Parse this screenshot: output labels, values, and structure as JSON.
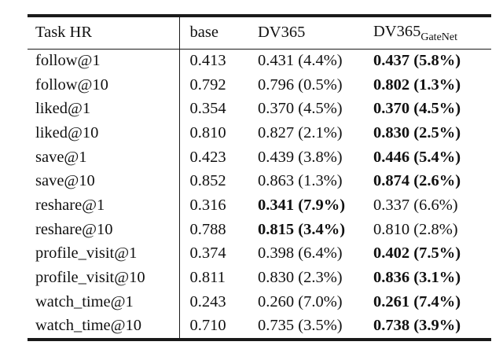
{
  "table": {
    "header": {
      "task": "Task HR",
      "base": "base",
      "dv365": "DV365",
      "gatenet_main": "DV365",
      "gatenet_sub": "GateNet"
    },
    "rows": [
      {
        "task": "follow@1",
        "base": "0.413",
        "dv365": "0.431 (4.4%)",
        "dv365_bold": false,
        "gatenet": "0.437 (5.8%)",
        "gatenet_bold": true
      },
      {
        "task": "follow@10",
        "base": "0.792",
        "dv365": "0.796 (0.5%)",
        "dv365_bold": false,
        "gatenet": "0.802 (1.3%)",
        "gatenet_bold": true
      },
      {
        "task": "liked@1",
        "base": "0.354",
        "dv365": "0.370 (4.5%)",
        "dv365_bold": false,
        "gatenet": "0.370 (4.5%)",
        "gatenet_bold": true
      },
      {
        "task": "liked@10",
        "base": "0.810",
        "dv365": "0.827 (2.1%)",
        "dv365_bold": false,
        "gatenet": "0.830 (2.5%)",
        "gatenet_bold": true
      },
      {
        "task": "save@1",
        "base": "0.423",
        "dv365": "0.439 (3.8%)",
        "dv365_bold": false,
        "gatenet": "0.446 (5.4%)",
        "gatenet_bold": true
      },
      {
        "task": "save@10",
        "base": "0.852",
        "dv365": "0.863 (1.3%)",
        "dv365_bold": false,
        "gatenet": "0.874 (2.6%)",
        "gatenet_bold": true
      },
      {
        "task": "reshare@1",
        "base": "0.316",
        "dv365": "0.341 (7.9%)",
        "dv365_bold": true,
        "gatenet": "0.337 (6.6%)",
        "gatenet_bold": false
      },
      {
        "task": "reshare@10",
        "base": "0.788",
        "dv365": "0.815 (3.4%)",
        "dv365_bold": true,
        "gatenet": "0.810 (2.8%)",
        "gatenet_bold": false
      },
      {
        "task": "profile_visit@1",
        "base": "0.374",
        "dv365": "0.398 (6.4%)",
        "dv365_bold": false,
        "gatenet": "0.402 (7.5%)",
        "gatenet_bold": true
      },
      {
        "task": "profile_visit@10",
        "base": "0.811",
        "dv365": "0.830 (2.3%)",
        "dv365_bold": false,
        "gatenet": "0.836 (3.1%)",
        "gatenet_bold": true
      },
      {
        "task": "watch_time@1",
        "base": "0.243",
        "dv365": "0.260 (7.0%)",
        "dv365_bold": false,
        "gatenet": "0.261 (7.4%)",
        "gatenet_bold": true
      },
      {
        "task": "watch_time@10",
        "base": "0.710",
        "dv365": "0.735 (3.5%)",
        "dv365_bold": false,
        "gatenet": "0.738 (3.9%)",
        "gatenet_bold": true
      }
    ]
  }
}
